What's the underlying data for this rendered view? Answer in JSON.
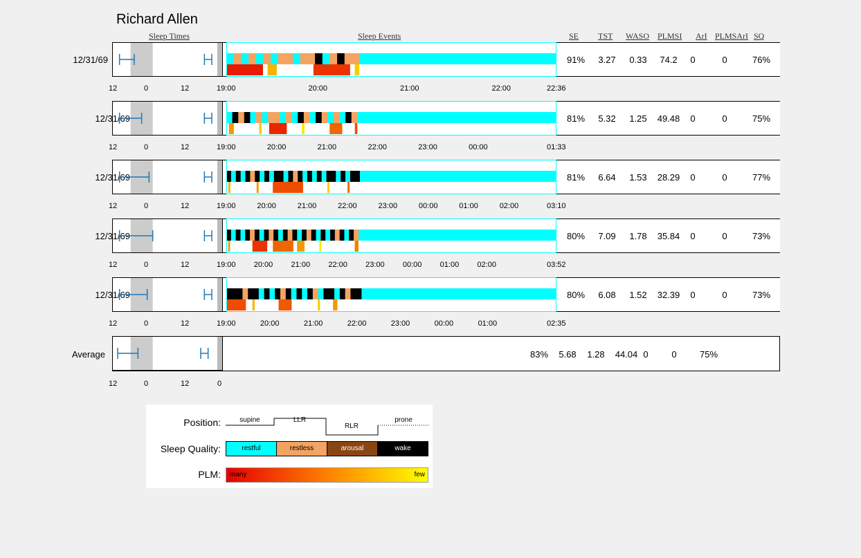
{
  "title": "Richard Allen",
  "headers": {
    "sleep_times": "Sleep Times",
    "sleep_events": "Sleep Events",
    "metrics": [
      "SE",
      "TST",
      "WASO",
      "PLMSI",
      "ArI",
      "PLMSArI",
      "SQ"
    ]
  },
  "sleep_times_ticks": [
    "12",
    "0",
    "12",
    "0"
  ],
  "colors": {
    "restful": "#00ffff",
    "restless": "#f4a460",
    "arousal": "#8b4513",
    "wake": "#000000",
    "night_shade": "#cccccc",
    "marker": "#1f77b4",
    "plm_many": "#e60000",
    "plm_few": "#ffff00"
  },
  "chart_data": {
    "type": "table",
    "rows": [
      {
        "date": "12/31/69",
        "metrics": [
          "91%",
          "3.27",
          "0.33",
          "74.2",
          "0",
          "0",
          "76%"
        ],
        "ticks": [
          "19:00",
          "20:00",
          "21:00",
          "22:00",
          "22:36"
        ],
        "start_hour": 19.0,
        "end_hour": 22.6,
        "events_end_hour": 20.45,
        "sleep_interval": [
          -8,
          0
        ],
        "wake_interval": [
          38,
          42
        ],
        "quality": [
          "restful",
          "restless",
          "restful",
          "restless",
          "restful",
          "restless",
          "restful",
          "restless",
          "restless",
          "restful",
          "restless",
          "restless",
          "wake",
          "restful",
          "restless",
          "wake",
          "restless",
          "restless"
        ],
        "plm": [
          [
            19.0,
            19.4,
            0.1
          ],
          [
            19.45,
            19.55,
            0.7
          ],
          [
            19.95,
            20.35,
            0.2
          ],
          [
            20.4,
            20.45,
            0.8
          ]
        ]
      },
      {
        "date": "12/31/69",
        "metrics": [
          "81%",
          "5.32",
          "1.25",
          "49.48",
          "0",
          "0",
          "75%"
        ],
        "ticks": [
          "19:00",
          "20:00",
          "21:00",
          "22:00",
          "23:00",
          "00:00",
          "01:33"
        ],
        "start_hour": 19.0,
        "end_hour": 25.55,
        "events_end_hour": 21.6,
        "sleep_interval": [
          -8,
          4
        ],
        "wake_interval": [
          38,
          42
        ],
        "quality": [
          "restful",
          "wake",
          "restless",
          "wake",
          "restful",
          "restless",
          "restful",
          "restless",
          "restless",
          "restful",
          "restless",
          "restful",
          "wake",
          "restless",
          "restful",
          "wake",
          "restless",
          "restful",
          "restless",
          "restful",
          "wake",
          "restless"
        ],
        "plm": [
          [
            19.05,
            19.15,
            0.6
          ],
          [
            19.65,
            19.7,
            0.8
          ],
          [
            19.85,
            20.2,
            0.15
          ],
          [
            20.5,
            20.55,
            0.9
          ],
          [
            21.05,
            21.3,
            0.4
          ],
          [
            21.55,
            21.6,
            0.3
          ]
        ]
      },
      {
        "date": "12/31/69",
        "metrics": [
          "81%",
          "6.64",
          "1.53",
          "28.29",
          "0",
          "0",
          "77%"
        ],
        "ticks": [
          "19:00",
          "20:00",
          "21:00",
          "22:00",
          "23:00",
          "00:00",
          "01:00",
          "02:00",
          "03:10"
        ],
        "start_hour": 19.0,
        "end_hour": 27.17,
        "events_end_hour": 22.3,
        "sleep_interval": [
          -8,
          8
        ],
        "wake_interval": [
          38,
          42
        ],
        "quality": [
          "wake",
          "restful",
          "wake",
          "restful",
          "wake",
          "restless",
          "wake",
          "restful",
          "wake",
          "restful",
          "wake",
          "wake",
          "restful",
          "wake",
          "restless",
          "wake",
          "restful",
          "wake",
          "restful",
          "wake",
          "restful",
          "wake",
          "wake",
          "restful",
          "wake",
          "restful",
          "wake",
          "wake"
        ],
        "plm": [
          [
            19.05,
            19.1,
            0.7
          ],
          [
            19.75,
            19.8,
            0.6
          ],
          [
            20.15,
            20.9,
            0.3
          ],
          [
            21.5,
            21.55,
            0.8
          ],
          [
            22.0,
            22.05,
            0.4
          ]
        ]
      },
      {
        "date": "12/31/69",
        "metrics": [
          "80%",
          "7.09",
          "1.78",
          "35.84",
          "0",
          "0",
          "73%"
        ],
        "ticks": [
          "19:00",
          "20:00",
          "21:00",
          "22:00",
          "23:00",
          "00:00",
          "01:00",
          "02:00",
          "03:52"
        ],
        "start_hour": 19.0,
        "end_hour": 27.87,
        "events_end_hour": 22.55,
        "sleep_interval": [
          -8,
          10
        ],
        "wake_interval": [
          38,
          42
        ],
        "quality": [
          "wake",
          "restful",
          "wake",
          "restful",
          "wake",
          "restless",
          "wake",
          "restful",
          "wake",
          "restless",
          "wake",
          "restful",
          "wake",
          "restless",
          "wake",
          "restful",
          "wake",
          "restless",
          "wake",
          "restful",
          "wake",
          "restful",
          "wake",
          "restless",
          "wake",
          "restful",
          "wake",
          "restless"
        ],
        "plm": [
          [
            19.05,
            19.1,
            0.6
          ],
          [
            19.7,
            20.1,
            0.2
          ],
          [
            20.25,
            20.8,
            0.4
          ],
          [
            20.9,
            21.1,
            0.6
          ],
          [
            21.5,
            21.55,
            0.9
          ],
          [
            22.45,
            22.55,
            0.5
          ]
        ]
      },
      {
        "date": "12/31/69",
        "metrics": [
          "80%",
          "6.08",
          "1.52",
          "32.39",
          "0",
          "0",
          "73%"
        ],
        "ticks": [
          "19:00",
          "20:00",
          "21:00",
          "22:00",
          "23:00",
          "00:00",
          "01:00",
          "02:35"
        ],
        "start_hour": 19.0,
        "end_hour": 26.58,
        "events_end_hour": 22.1,
        "sleep_interval": [
          -8,
          7
        ],
        "wake_interval": [
          38,
          42
        ],
        "quality": [
          "wake",
          "wake",
          "wake",
          "restless",
          "wake",
          "wake",
          "restful",
          "wake",
          "restful",
          "wake",
          "restless",
          "wake",
          "restful",
          "wake",
          "restful",
          "wake",
          "restless",
          "restful",
          "wake",
          "wake",
          "restful",
          "wake",
          "restless",
          "wake",
          "wake"
        ],
        "plm": [
          [
            19.0,
            19.45,
            0.3
          ],
          [
            19.6,
            19.65,
            0.7
          ],
          [
            20.2,
            20.5,
            0.35
          ],
          [
            21.1,
            21.15,
            0.8
          ],
          [
            21.45,
            21.55,
            0.6
          ]
        ]
      }
    ],
    "average": {
      "label": "Average",
      "metrics": [
        "83%",
        "5.68",
        "1.28",
        "44.04",
        "0",
        "0",
        "75%"
      ],
      "sleep_interval": [
        -9,
        2
      ],
      "wake_interval": [
        36,
        40
      ]
    }
  },
  "legend": {
    "position_label": "Position:",
    "positions": [
      "supine",
      "LLR",
      "RLR",
      "prone"
    ],
    "quality_label": "Sleep Quality:",
    "qualities": [
      {
        "name": "restful",
        "color": "#00ffff"
      },
      {
        "name": "restless",
        "color": "#f4a460"
      },
      {
        "name": "arousal",
        "color": "#8b4513"
      },
      {
        "name": "wake",
        "color": "#000000"
      }
    ],
    "plm_label": "PLM:",
    "plm_many": "many",
    "plm_few": "few"
  }
}
